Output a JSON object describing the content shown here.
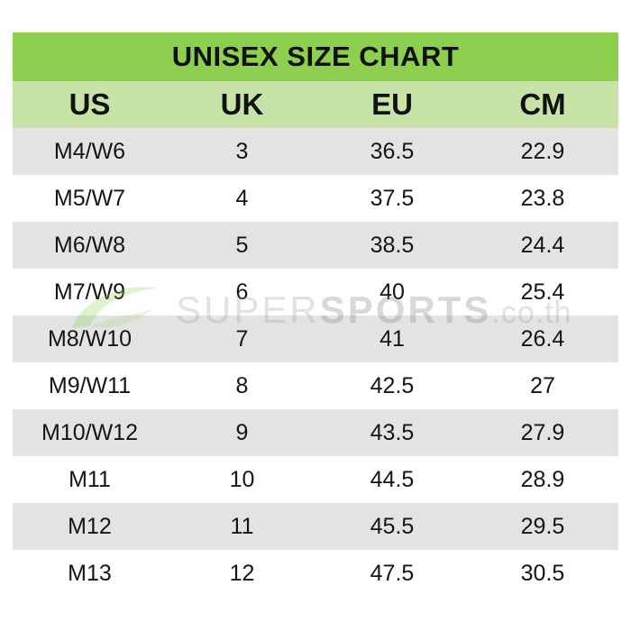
{
  "title": "UNISEX SIZE CHART",
  "columns": [
    "US",
    "UK",
    "EU",
    "CM"
  ],
  "rows": [
    [
      "M4/W6",
      "3",
      "36.5",
      "22.9"
    ],
    [
      "M5/W7",
      "4",
      "37.5",
      "23.8"
    ],
    [
      "M6/W8",
      "5",
      "38.5",
      "24.4"
    ],
    [
      "M7/W9",
      "6",
      "40",
      "25.4"
    ],
    [
      "M8/W10",
      "7",
      "41",
      "26.4"
    ],
    [
      "M9/W11",
      "8",
      "42.5",
      "27"
    ],
    [
      "M10/W12",
      "9",
      "43.5",
      "27.9"
    ],
    [
      "M11",
      "10",
      "44.5",
      "28.9"
    ],
    [
      "M12",
      "11",
      "45.5",
      "29.5"
    ],
    [
      "M13",
      "12",
      "47.5",
      "30.5"
    ]
  ],
  "watermark": {
    "part1": "SUPER",
    "part2": "SPORTS",
    "part3": ".co.th"
  },
  "colors": {
    "title_bg": "#8dcf4f",
    "header_bg": "#c6e4a7",
    "stripe_bg": "#e3e3e3"
  }
}
